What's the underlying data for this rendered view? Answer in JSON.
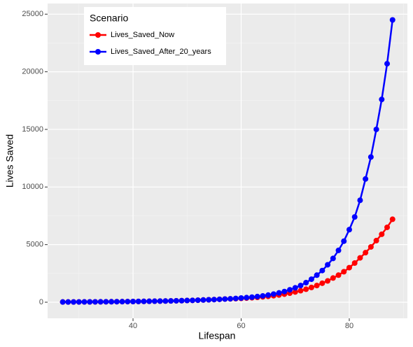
{
  "chart_data": {
    "type": "line",
    "xlabel": "Lifespan",
    "ylabel": "Lives Saved",
    "legend_title": "Scenario",
    "legend_position": "top-left",
    "grid": true,
    "x": [
      27,
      28,
      29,
      30,
      31,
      32,
      33,
      34,
      35,
      36,
      37,
      38,
      39,
      40,
      41,
      42,
      43,
      44,
      45,
      46,
      47,
      48,
      49,
      50,
      51,
      52,
      53,
      54,
      55,
      56,
      57,
      58,
      59,
      60,
      61,
      62,
      63,
      64,
      65,
      66,
      67,
      68,
      69,
      70,
      71,
      72,
      73,
      74,
      75,
      76,
      77,
      78,
      79,
      80,
      81,
      82,
      83,
      84,
      85,
      86,
      87,
      88
    ],
    "series": [
      {
        "name": "Lives_Saved_Now",
        "color": "#ff0000",
        "values": [
          20,
          22,
          24,
          26,
          28,
          31,
          34,
          37,
          40,
          44,
          48,
          52,
          57,
          62,
          68,
          74,
          81,
          88,
          96,
          105,
          115,
          125,
          137,
          150,
          163,
          178,
          194,
          212,
          231,
          252,
          275,
          290,
          310,
          335,
          360,
          390,
          425,
          465,
          510,
          565,
          630,
          700,
          790,
          890,
          1000,
          1130,
          1280,
          1450,
          1650,
          1850,
          2100,
          2350,
          2650,
          3000,
          3400,
          3850,
          4300,
          4800,
          5350,
          5900,
          6500,
          7200
        ]
      },
      {
        "name": "Lives_Saved_After_20_years",
        "color": "#0000ff",
        "values": [
          20,
          22,
          24,
          26,
          28,
          31,
          34,
          37,
          40,
          44,
          48,
          52,
          57,
          62,
          68,
          74,
          81,
          88,
          96,
          105,
          115,
          125,
          137,
          150,
          163,
          178,
          194,
          212,
          231,
          252,
          275,
          300,
          330,
          365,
          400,
          440,
          490,
          550,
          620,
          710,
          810,
          930,
          1080,
          1250,
          1450,
          1700,
          2000,
          2350,
          2750,
          3250,
          3800,
          4500,
          5300,
          6300,
          7400,
          8850,
          10700,
          12600,
          15000,
          17600,
          20700,
          24500
        ]
      }
    ],
    "xlim": [
      24.2,
      90.75
    ],
    "xticks": [
      40,
      60,
      80
    ],
    "ylim": [
      -1396,
      25926
    ],
    "yticks": [
      0,
      5000,
      10000,
      15000,
      20000,
      25000
    ]
  }
}
